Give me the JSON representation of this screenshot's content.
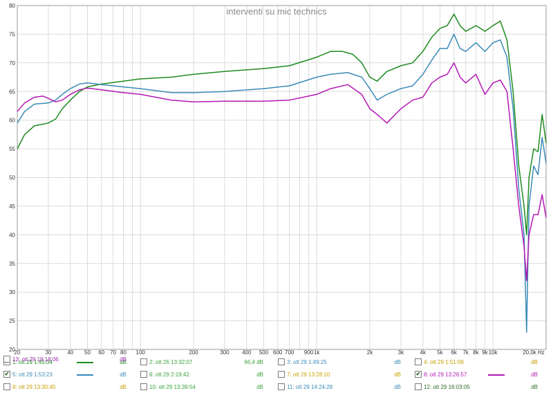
{
  "chart_data": {
    "type": "line",
    "title": "interventi su mic technics",
    "x_scale": "log",
    "xlim": [
      20,
      20000
    ],
    "ylim": [
      20,
      80
    ],
    "grid": true,
    "x_ticks": [
      {
        "v": 20,
        "label": "20"
      },
      {
        "v": 30,
        "label": "30"
      },
      {
        "v": 40,
        "label": "40"
      },
      {
        "v": 50,
        "label": "50"
      },
      {
        "v": 60,
        "label": "60"
      },
      {
        "v": 70,
        "label": "70"
      },
      {
        "v": 80,
        "label": "80"
      },
      {
        "v": 100,
        "label": "100"
      },
      {
        "v": 200,
        "label": "200"
      },
      {
        "v": 300,
        "label": "300"
      },
      {
        "v": 400,
        "label": "400"
      },
      {
        "v": 500,
        "label": "500"
      },
      {
        "v": 600,
        "label": "600"
      },
      {
        "v": 700,
        "label": "700"
      },
      {
        "v": 900,
        "label": "900"
      },
      {
        "v": 1000,
        "label": "1k"
      },
      {
        "v": 2000,
        "label": "2k"
      },
      {
        "v": 3000,
        "label": "3k"
      },
      {
        "v": 4000,
        "label": "4k"
      },
      {
        "v": 5000,
        "label": "5k"
      },
      {
        "v": 6000,
        "label": "6k"
      },
      {
        "v": 7000,
        "label": "7k"
      },
      {
        "v": 8000,
        "label": "8k"
      },
      {
        "v": 9000,
        "label": "9k"
      },
      {
        "v": 10000,
        "label": "10k"
      },
      {
        "v": 20000,
        "label": "20,0k Hz"
      }
    ],
    "y_ticks": [
      20,
      25,
      30,
      35,
      40,
      45,
      50,
      55,
      60,
      65,
      70,
      75,
      80
    ],
    "series": [
      {
        "name": "1: ott 29 1:45:04",
        "color": "#1e8a1e",
        "points": [
          [
            20,
            55
          ],
          [
            22,
            57.5
          ],
          [
            25,
            59
          ],
          [
            30,
            59.5
          ],
          [
            33,
            60.2
          ],
          [
            36,
            62
          ],
          [
            40,
            63.5
          ],
          [
            45,
            65
          ],
          [
            50,
            65.8
          ],
          [
            60,
            66.3
          ],
          [
            80,
            66.8
          ],
          [
            100,
            67.2
          ],
          [
            150,
            67.5
          ],
          [
            200,
            68
          ],
          [
            300,
            68.5
          ],
          [
            500,
            69
          ],
          [
            700,
            69.5
          ],
          [
            1000,
            71
          ],
          [
            1200,
            72
          ],
          [
            1400,
            72
          ],
          [
            1600,
            71.5
          ],
          [
            1800,
            70
          ],
          [
            2000,
            67.5
          ],
          [
            2200,
            66.8
          ],
          [
            2500,
            68.5
          ],
          [
            3000,
            69.5
          ],
          [
            3500,
            70
          ],
          [
            4000,
            72
          ],
          [
            4500,
            74.5
          ],
          [
            5000,
            76
          ],
          [
            5500,
            76.5
          ],
          [
            6000,
            78.5
          ],
          [
            6500,
            76.5
          ],
          [
            7000,
            75.5
          ],
          [
            8000,
            76.5
          ],
          [
            9000,
            75.5
          ],
          [
            10000,
            76.5
          ],
          [
            11000,
            77.3
          ],
          [
            12000,
            74
          ],
          [
            13000,
            65
          ],
          [
            14000,
            52
          ],
          [
            15000,
            45
          ],
          [
            15500,
            40
          ],
          [
            16000,
            50
          ],
          [
            17000,
            55
          ],
          [
            18000,
            54.5
          ],
          [
            19000,
            61
          ],
          [
            20000,
            56
          ]
        ]
      },
      {
        "name": "5: ott 29 1:53:23",
        "color": "#3a8ab8",
        "points": [
          [
            20,
            59.5
          ],
          [
            22,
            61.5
          ],
          [
            25,
            62.8
          ],
          [
            30,
            63
          ],
          [
            33,
            63.5
          ],
          [
            36,
            64.5
          ],
          [
            40,
            65.5
          ],
          [
            45,
            66.3
          ],
          [
            50,
            66.5
          ],
          [
            60,
            66.2
          ],
          [
            80,
            65.8
          ],
          [
            100,
            65.5
          ],
          [
            150,
            64.8
          ],
          [
            200,
            64.8
          ],
          [
            300,
            65
          ],
          [
            500,
            65.5
          ],
          [
            700,
            66
          ],
          [
            1000,
            67.5
          ],
          [
            1200,
            68
          ],
          [
            1500,
            68.3
          ],
          [
            1800,
            67.5
          ],
          [
            2000,
            65.5
          ],
          [
            2200,
            63.5
          ],
          [
            2500,
            64.5
          ],
          [
            3000,
            65.5
          ],
          [
            3500,
            66
          ],
          [
            4000,
            68
          ],
          [
            4500,
            70.5
          ],
          [
            5000,
            72.5
          ],
          [
            5500,
            72.5
          ],
          [
            6000,
            75
          ],
          [
            6500,
            72.5
          ],
          [
            7000,
            72
          ],
          [
            8000,
            73.5
          ],
          [
            9000,
            72
          ],
          [
            10000,
            73.5
          ],
          [
            11000,
            74
          ],
          [
            12000,
            71
          ],
          [
            13000,
            62
          ],
          [
            14000,
            48
          ],
          [
            15000,
            40
          ],
          [
            15500,
            23
          ],
          [
            16000,
            45
          ],
          [
            17000,
            52
          ],
          [
            18000,
            50.5
          ],
          [
            19000,
            57
          ],
          [
            20000,
            52.5
          ]
        ]
      },
      {
        "name": "8: ott 29 13:26:57",
        "color": "#b317b3",
        "points": [
          [
            20,
            61.5
          ],
          [
            22,
            63
          ],
          [
            25,
            64
          ],
          [
            28,
            64.2
          ],
          [
            30,
            63.8
          ],
          [
            33,
            63.2
          ],
          [
            36,
            63.5
          ],
          [
            40,
            64.5
          ],
          [
            45,
            65.3
          ],
          [
            50,
            65.6
          ],
          [
            60,
            65.3
          ],
          [
            80,
            64.8
          ],
          [
            100,
            64.5
          ],
          [
            150,
            63.5
          ],
          [
            200,
            63.2
          ],
          [
            300,
            63.3
          ],
          [
            500,
            63.3
          ],
          [
            700,
            63.5
          ],
          [
            1000,
            64.5
          ],
          [
            1200,
            65.5
          ],
          [
            1500,
            66.2
          ],
          [
            1800,
            64.5
          ],
          [
            2000,
            62
          ],
          [
            2200,
            61
          ],
          [
            2500,
            59.5
          ],
          [
            3000,
            62
          ],
          [
            3500,
            63.5
          ],
          [
            4000,
            64
          ],
          [
            4500,
            66.5
          ],
          [
            5000,
            67.5
          ],
          [
            5500,
            68
          ],
          [
            6000,
            70
          ],
          [
            6500,
            67.5
          ],
          [
            7000,
            66.5
          ],
          [
            8000,
            68
          ],
          [
            9000,
            64.5
          ],
          [
            10000,
            66.5
          ],
          [
            11000,
            67
          ],
          [
            12000,
            65
          ],
          [
            13000,
            55
          ],
          [
            14000,
            45
          ],
          [
            15000,
            38
          ],
          [
            15500,
            32
          ],
          [
            16000,
            40
          ],
          [
            17000,
            43.5
          ],
          [
            18000,
            43.5
          ],
          [
            19000,
            47
          ],
          [
            20000,
            43
          ]
        ]
      }
    ]
  },
  "legend": [
    {
      "label": "1: ott 29 1:45:04",
      "value": "dB",
      "checked": true,
      "text_color": "#1e8a1e",
      "swatch": "#1e8a1e"
    },
    {
      "label": "2: ott 26 13:32:07",
      "value": "66,4 dB",
      "checked": false,
      "text_color": "#3aa23a",
      "swatch": ""
    },
    {
      "label": "3: ott 29 1:49:25",
      "value": "dB",
      "checked": false,
      "text_color": "#3a8ab8",
      "swatch": ""
    },
    {
      "label": "4: ott 29 1:51:08",
      "value": "dB",
      "checked": false,
      "text_color": "#c8a000",
      "swatch": ""
    },
    {
      "label": "5: ott 29 1:53:23",
      "value": "dB",
      "checked": true,
      "text_color": "#3a8ab8",
      "swatch": "#3a8ab8"
    },
    {
      "label": "6: ott 29 2:19:42",
      "value": "dB",
      "checked": false,
      "text_color": "#3aa23a",
      "swatch": ""
    },
    {
      "label": "7: ott 29 13:28:10",
      "value": "dB",
      "checked": false,
      "text_color": "#c8a000",
      "swatch": ""
    },
    {
      "label": "8: ott 29 13:26:57",
      "value": "dB",
      "checked": true,
      "text_color": "#b317b3",
      "swatch": "#b317b3"
    },
    {
      "label": "9: ott 29 13:30:45",
      "value": "dB",
      "checked": false,
      "text_color": "#c8a000",
      "swatch": ""
    },
    {
      "label": "10: ott 29 13:39:54",
      "value": "dB",
      "checked": false,
      "text_color": "#3aa23a",
      "swatch": ""
    },
    {
      "label": "11: ott 29 14:24:28",
      "value": "dB",
      "checked": false,
      "text_color": "#3a8ab8",
      "swatch": ""
    },
    {
      "label": "12: ott 29 16:03:05",
      "value": "dB",
      "checked": false,
      "text_color": "#2b6b2b",
      "swatch": ""
    },
    {
      "label": "13: ott 29 19:18:06",
      "value": "dB",
      "checked": false,
      "text_color": "#9b2ab0",
      "swatch": ""
    }
  ]
}
